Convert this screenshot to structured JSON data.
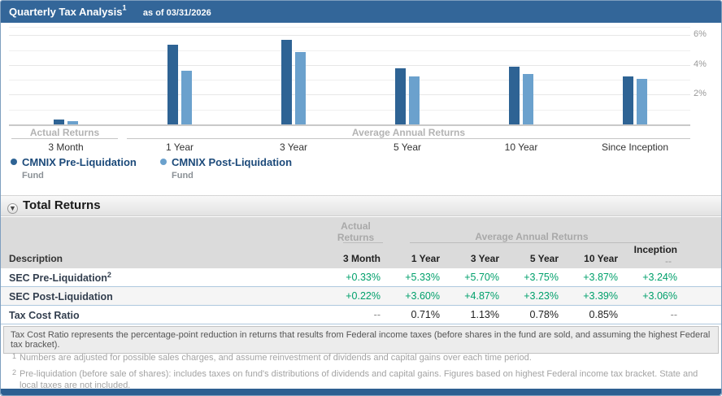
{
  "header": {
    "title": "Quarterly Tax Analysis",
    "title_sup": "1",
    "as_of": "as of 03/31/2026"
  },
  "chart_data": {
    "type": "bar",
    "categories": [
      "3 Month",
      "1 Year",
      "3 Year",
      "5 Year",
      "10 Year",
      "Since Inception"
    ],
    "group_labels": [
      {
        "label": "Actual Returns",
        "categories": [
          "3 Month"
        ]
      },
      {
        "label": "Average Annual Returns",
        "categories": [
          "1 Year",
          "3 Year",
          "5 Year",
          "10 Year",
          "Since Inception"
        ]
      }
    ],
    "series": [
      {
        "name": "CMNIX Pre-Liquidation",
        "sublabel": "Fund",
        "color": "#2e6394",
        "values": [
          0.33,
          5.33,
          5.7,
          3.75,
          3.87,
          3.24
        ]
      },
      {
        "name": "CMNIX Post-Liquidation",
        "sublabel": "Fund",
        "color": "#6ba1cd",
        "values": [
          0.22,
          3.6,
          4.87,
          3.23,
          3.39,
          3.06
        ]
      }
    ],
    "ytick_labels": [
      "2%",
      "4%",
      "6%"
    ],
    "yticks_pct": [
      2,
      4,
      6
    ],
    "ylim": [
      0,
      6.55
    ],
    "grid": true,
    "legend_position": "bottom-left"
  },
  "section": {
    "title": "Total Returns"
  },
  "table": {
    "group_headers": {
      "actual": "Actual Returns",
      "average": "Average Annual Returns"
    },
    "description_header": "Description",
    "columns": [
      "3 Month",
      "1 Year",
      "3 Year",
      "5 Year",
      "10 Year",
      "Inception"
    ],
    "inception_sub": "--",
    "rows": [
      {
        "label": "SEC Pre-Liquidation",
        "label_sup": "2",
        "value_style": "positive",
        "values": [
          "+0.33%",
          "+5.33%",
          "+5.70%",
          "+3.75%",
          "+3.87%",
          "+3.24%"
        ]
      },
      {
        "label": "SEC Post-Liquidation",
        "label_sup": "",
        "value_style": "positive",
        "values": [
          "+0.22%",
          "+3.60%",
          "+4.87%",
          "+3.23%",
          "+3.39%",
          "+3.06%"
        ]
      },
      {
        "label": "Tax Cost Ratio",
        "label_sup": "",
        "value_style": "neutral",
        "values": [
          "--",
          "0.71%",
          "1.13%",
          "0.78%",
          "0.85%",
          "--"
        ]
      }
    ]
  },
  "note": "Tax Cost Ratio represents the percentage-point reduction in returns that results from Federal income taxes (before shares in the fund are sold, and assuming the highest Federal tax bracket).",
  "footnotes": [
    {
      "sup": "1",
      "text": "Numbers are adjusted for possible sales charges, and assume reinvestment of dividends and capital gains over each time period."
    },
    {
      "sup": "2",
      "text": "Pre-liquidation (before sale of shares): includes taxes on fund's distributions of dividends and capital gains. Figures based on highest Federal income tax bracket. State and local taxes are not included."
    }
  ],
  "colors": {
    "header_bg": "#336699",
    "footer_bg": "#2d5f91",
    "series1": "#2e6394",
    "series2": "#6ba1cd",
    "positive": "#00a06b"
  }
}
